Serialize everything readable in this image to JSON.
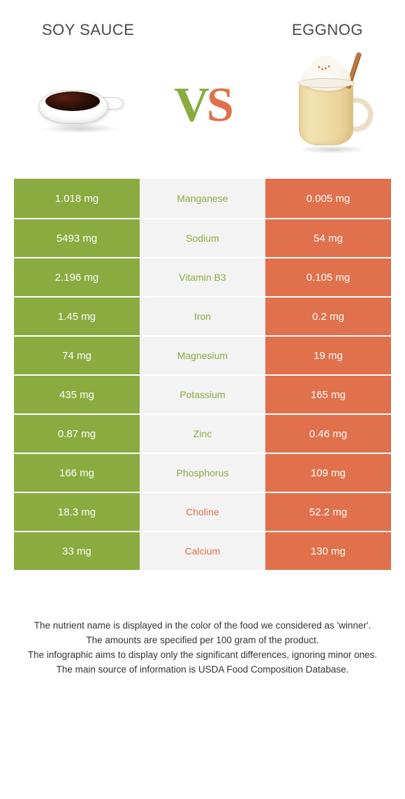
{
  "header": {
    "left_title": "SOY SAUCE",
    "right_title": "EGGNOG",
    "vs_v": "V",
    "vs_s": "S"
  },
  "colors": {
    "green": "#8aab3f",
    "orange": "#e0714c",
    "mid_bg": "#f3f3f3",
    "text_footer": "#333333"
  },
  "table": {
    "rows": [
      {
        "nutrient": "Manganese",
        "left": "1.018 mg",
        "right": "0.005 mg",
        "winner": "left"
      },
      {
        "nutrient": "Sodium",
        "left": "5493 mg",
        "right": "54 mg",
        "winner": "left"
      },
      {
        "nutrient": "Vitamin B3",
        "left": "2.196 mg",
        "right": "0.105 mg",
        "winner": "left"
      },
      {
        "nutrient": "Iron",
        "left": "1.45 mg",
        "right": "0.2 mg",
        "winner": "left"
      },
      {
        "nutrient": "Magnesium",
        "left": "74 mg",
        "right": "19 mg",
        "winner": "left"
      },
      {
        "nutrient": "Potassium",
        "left": "435 mg",
        "right": "165 mg",
        "winner": "left"
      },
      {
        "nutrient": "Zinc",
        "left": "0.87 mg",
        "right": "0.46 mg",
        "winner": "left"
      },
      {
        "nutrient": "Phosphorus",
        "left": "166 mg",
        "right": "109 mg",
        "winner": "left"
      },
      {
        "nutrient": "Choline",
        "left": "18.3 mg",
        "right": "52.2 mg",
        "winner": "right"
      },
      {
        "nutrient": "Calcium",
        "left": "33 mg",
        "right": "130 mg",
        "winner": "right"
      }
    ]
  },
  "footer": {
    "line1": "The nutrient name is displayed in the color of the food we considered as 'winner'.",
    "line2": "The amounts are specified per 100 gram of the product.",
    "line3": "The infographic aims to display only the significant differences, ignoring minor ones.",
    "line4": "The main source of information is USDA Food Composition Database."
  }
}
